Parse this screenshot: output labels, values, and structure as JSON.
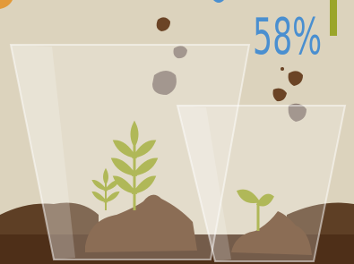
{
  "headline": {
    "percent": "58%"
  }
}
